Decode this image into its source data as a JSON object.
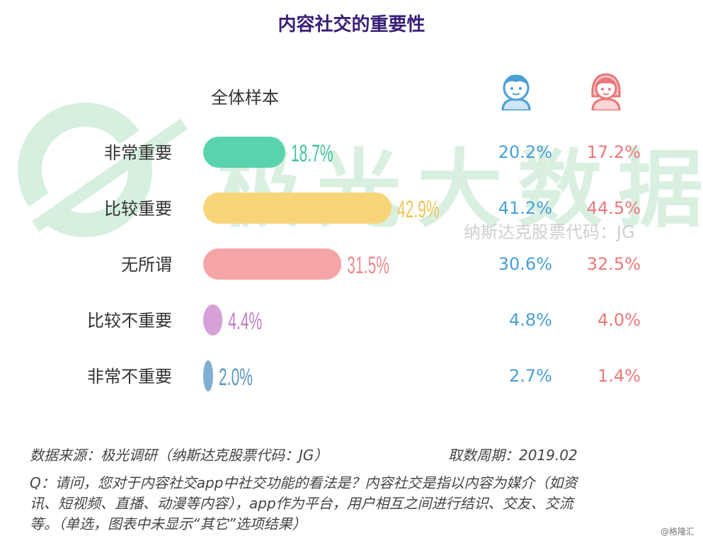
{
  "header": {
    "title": "内容社交的重要性",
    "sample_label": "全体样本"
  },
  "watermark": {
    "brand": "极光大数据",
    "sub": "纳斯达克股票代码：JG"
  },
  "icons": {
    "male": "boy-avatar-icon",
    "female": "girl-avatar-icon"
  },
  "colors": {
    "title": "#3a1f78",
    "male_text": "#4a9fd8",
    "female_text": "#e9787a",
    "watermark": "#d9f0e1"
  },
  "chart_data": {
    "type": "bar",
    "orientation": "horizontal",
    "categories": [
      "非常重要",
      "比较重要",
      "无所谓",
      "比较不重要",
      "非常不重要"
    ],
    "series": [
      {
        "values": [
          18.7,
          42.9,
          31.5,
          4.4,
          2.0
        ],
        "labels": [
          "18.7%",
          "42.9%",
          "31.5%",
          "4.4%",
          "2.0%"
        ],
        "colors": [
          "#58d3ad",
          "#f9d57a",
          "#f6a5a7",
          "#d5a1d8",
          "#7fb0d4"
        ],
        "label_colors": [
          "#45c49e",
          "#f0c458",
          "#ef8c8f",
          "#c27fc6",
          "#5d97c4"
        ]
      }
    ],
    "gender_columns": {
      "male": [
        "20.2%",
        "41.2%",
        "30.6%",
        "4.8%",
        "2.7%"
      ],
      "female": [
        "17.2%",
        "44.5%",
        "32.5%",
        "4.0%",
        "1.4%"
      ]
    },
    "xlim": [
      0,
      42.9
    ],
    "grid": false,
    "legend": "none"
  },
  "footer": {
    "source": "数据来源：极光调研（纳斯达克股票代码：JG）",
    "period": "取数周期：2019.02",
    "q_line1": "Q：请问，您对于内容社交app中社交功能的看法是？内容社交是指以内容为媒介（如资",
    "q_line2": "讯、短视频、直播、动漫等内容），app作为平台，用户相互之间进行结识、交友、交流",
    "q_line3": "等。（单选，图表中未显示“其它”选项结果）",
    "credit": "@格隆汇"
  }
}
